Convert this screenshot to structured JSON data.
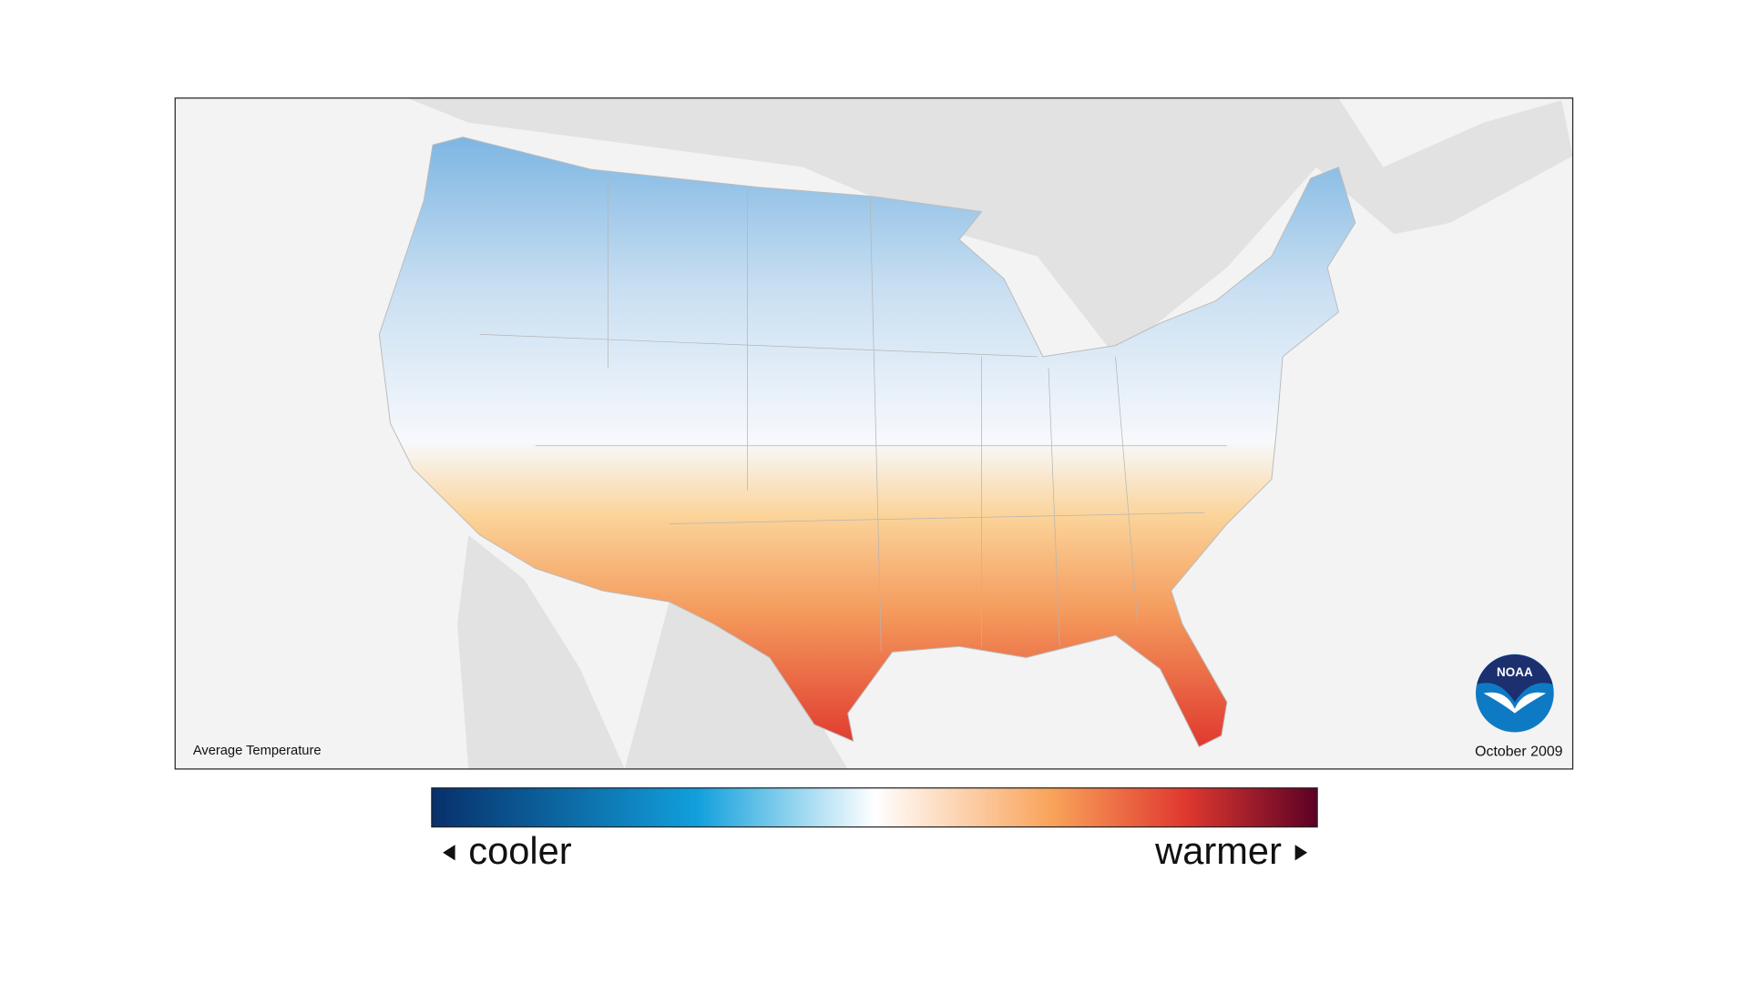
{
  "map": {
    "title": "Average Temperature",
    "date": "October 2009",
    "logo": "NOAA"
  },
  "legend": {
    "low": "cooler",
    "high": "warmer"
  }
}
